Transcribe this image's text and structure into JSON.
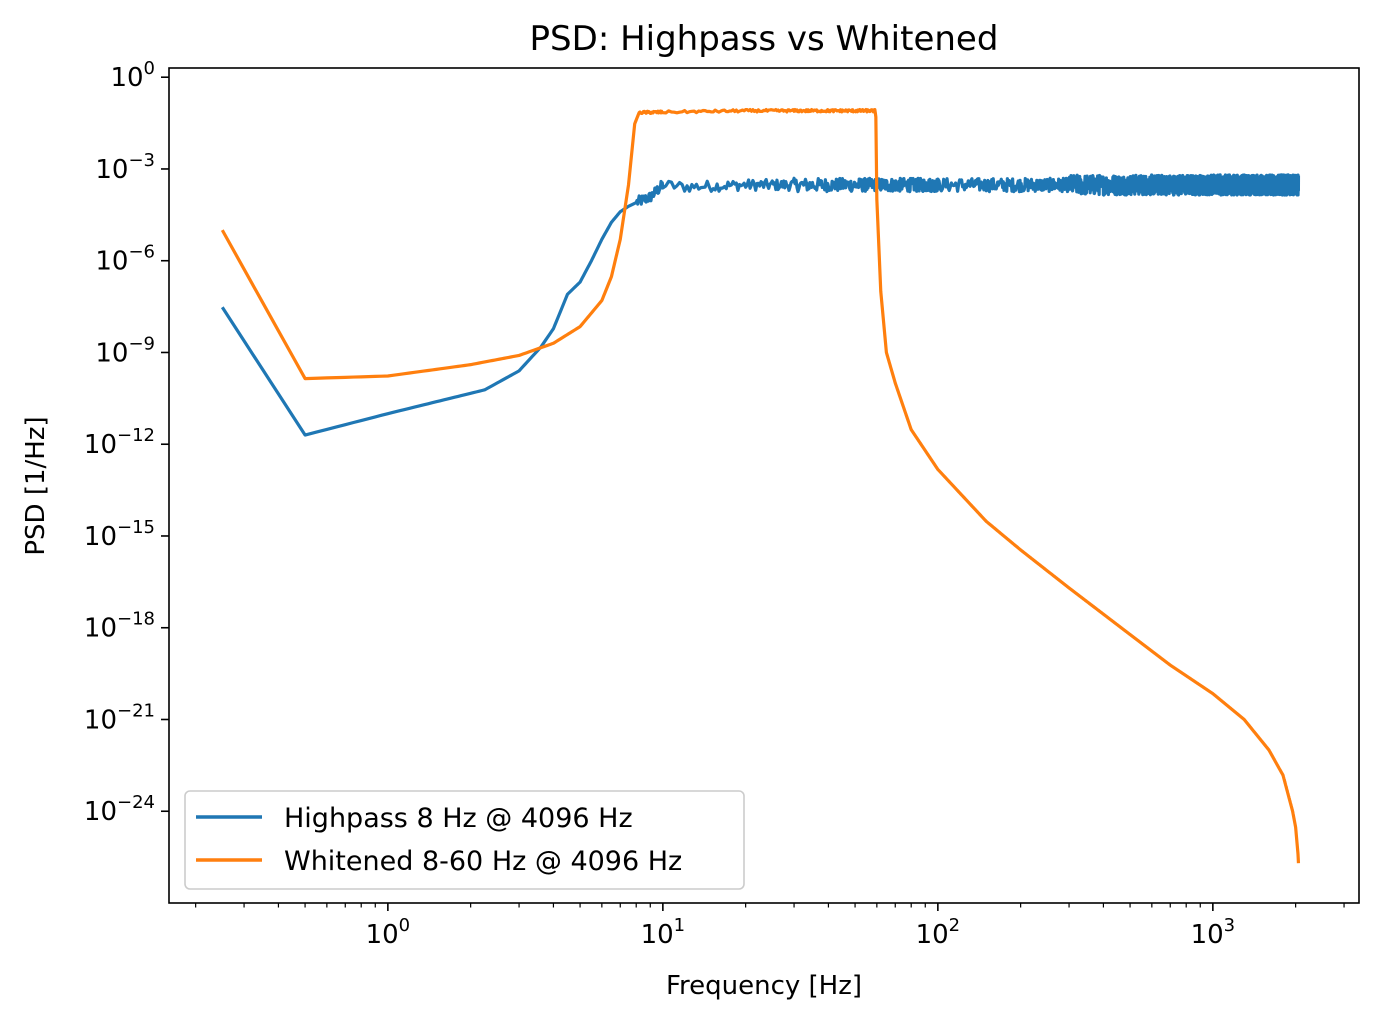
{
  "chart_data": {
    "type": "line",
    "title": "PSD: Highpass vs Whitened",
    "xlabel": "Frequency [Hz]",
    "ylabel": "PSD [1/Hz]",
    "xscale": "log",
    "yscale": "log",
    "xlim": [
      0.16,
      3400
    ],
    "ylim": [
      1e-27,
      2
    ],
    "xticks": [
      {
        "base": "10",
        "exp": "0",
        "value": 1
      },
      {
        "base": "10",
        "exp": "1",
        "value": 10
      },
      {
        "base": "10",
        "exp": "2",
        "value": 100
      },
      {
        "base": "10",
        "exp": "3",
        "value": 1000
      }
    ],
    "yticks": [
      {
        "base": "10",
        "exp": "0",
        "value": 1
      },
      {
        "base": "10",
        "exp": "−3",
        "value": 0.001
      },
      {
        "base": "10",
        "exp": "−6",
        "value": 1e-06
      },
      {
        "base": "10",
        "exp": "−9",
        "value": 1e-09
      },
      {
        "base": "10",
        "exp": "−12",
        "value": 1e-12
      },
      {
        "base": "10",
        "exp": "−15",
        "value": 1e-15
      },
      {
        "base": "10",
        "exp": "−18",
        "value": 1e-18
      },
      {
        "base": "10",
        "exp": "−21",
        "value": 1e-21
      },
      {
        "base": "10",
        "exp": "−24",
        "value": 1e-24
      }
    ],
    "legend_position": "lower-left",
    "series": [
      {
        "name": "Highpass 8 Hz @ 4096 Hz",
        "color": "#1f77b4",
        "noisy_from": 8,
        "points": [
          [
            0.25,
            3e-08
          ],
          [
            0.5,
            2e-12
          ],
          [
            1.0,
            1e-11
          ],
          [
            2.25,
            6e-11
          ],
          [
            3.0,
            2.5e-10
          ],
          [
            3.6,
            1.5e-09
          ],
          [
            4.0,
            6e-09
          ],
          [
            4.5,
            8e-08
          ],
          [
            5.0,
            2e-07
          ],
          [
            5.5,
            1e-06
          ],
          [
            6.0,
            5e-06
          ],
          [
            6.5,
            1.8e-05
          ],
          [
            7.0,
            4e-05
          ],
          [
            7.5,
            6e-05
          ],
          [
            8.0,
            8e-05
          ],
          [
            9.0,
            0.00012
          ],
          [
            10.0,
            0.0003
          ],
          [
            12.0,
            0.00026
          ],
          [
            20.0,
            0.0003
          ],
          [
            100.0,
            0.0003
          ],
          [
            2048.0,
            0.0003
          ]
        ]
      },
      {
        "name": "Whitened 8-60 Hz @ 4096 Hz",
        "color": "#ff7f0e",
        "noisy_from": 8.2,
        "noisy_to": 59.5,
        "points": [
          [
            0.25,
            1e-05
          ],
          [
            0.5,
            1.4e-10
          ],
          [
            1.0,
            1.7e-10
          ],
          [
            2.0,
            4e-10
          ],
          [
            3.0,
            8e-10
          ],
          [
            4.0,
            2e-09
          ],
          [
            5.0,
            7e-09
          ],
          [
            6.0,
            5e-08
          ],
          [
            6.5,
            3e-07
          ],
          [
            7.0,
            5e-06
          ],
          [
            7.5,
            0.0003
          ],
          [
            7.9,
            0.03
          ],
          [
            8.2,
            0.07
          ],
          [
            20.0,
            0.08
          ],
          [
            59.0,
            0.08
          ],
          [
            59.5,
            0.05
          ],
          [
            60.0,
            0.0001
          ],
          [
            62.0,
            1e-07
          ],
          [
            65.0,
            1e-09
          ],
          [
            70.0,
            1e-10
          ],
          [
            80.0,
            3e-12
          ],
          [
            100.0,
            1.5e-13
          ],
          [
            150.0,
            3e-15
          ],
          [
            200.0,
            3.5e-16
          ],
          [
            300.0,
            2e-17
          ],
          [
            500.0,
            6e-19
          ],
          [
            700.0,
            6e-20
          ],
          [
            1000.0,
            7e-21
          ],
          [
            1300.0,
            1e-21
          ],
          [
            1600.0,
            1e-22
          ],
          [
            1800.0,
            1.5e-23
          ],
          [
            1950.0,
            1e-24
          ],
          [
            2000.0,
            3e-25
          ],
          [
            2040.0,
            4e-26
          ],
          [
            2048.0,
            2e-26
          ]
        ]
      }
    ]
  }
}
